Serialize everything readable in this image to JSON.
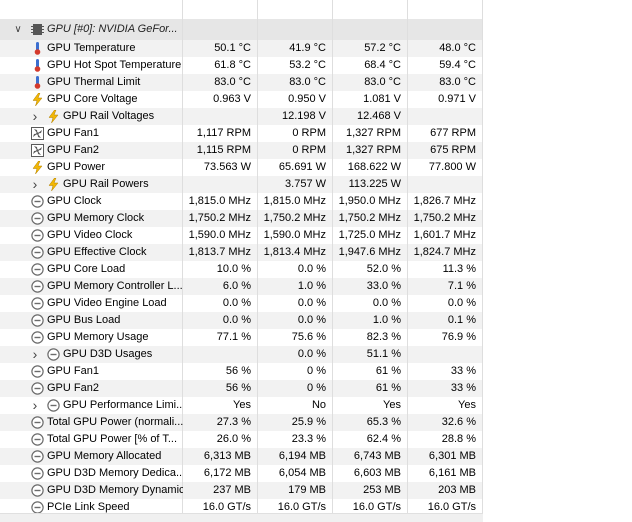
{
  "group": {
    "label": "GPU [#0]: NVIDIA GeFor...",
    "icon": "gpu-chip-icon",
    "expander": "chevron-down"
  },
  "rows": [
    {
      "label": "GPU Temperature",
      "icon": "thermometer-icon",
      "indent": 0,
      "values": [
        "50.1 °C",
        "41.9 °C",
        "57.2 °C",
        "48.0 °C"
      ]
    },
    {
      "label": "GPU Hot Spot Temperature",
      "icon": "thermometer-icon",
      "indent": 0,
      "values": [
        "61.8 °C",
        "53.2 °C",
        "68.4 °C",
        "59.4 °C"
      ]
    },
    {
      "label": "GPU Thermal Limit",
      "icon": "thermometer-icon",
      "indent": 0,
      "values": [
        "83.0 °C",
        "83.0 °C",
        "83.0 °C",
        "83.0 °C"
      ]
    },
    {
      "label": "GPU Core Voltage",
      "icon": "lightning-icon",
      "indent": 0,
      "values": [
        "0.963 V",
        "0.950 V",
        "1.081 V",
        "0.971 V"
      ]
    },
    {
      "label": "GPU Rail Voltages",
      "icon": "lightning-icon",
      "indent": 1,
      "expander": "chevron-right",
      "values": [
        "",
        "12.198 V",
        "12.468 V",
        ""
      ]
    },
    {
      "label": "GPU Fan1",
      "icon": "fan-icon",
      "indent": 0,
      "values": [
        "1,117 RPM",
        "0 RPM",
        "1,327 RPM",
        "677 RPM"
      ]
    },
    {
      "label": "GPU Fan2",
      "icon": "fan-icon",
      "indent": 0,
      "values": [
        "1,115 RPM",
        "0 RPM",
        "1,327 RPM",
        "675 RPM"
      ]
    },
    {
      "label": "GPU Power",
      "icon": "lightning-icon",
      "indent": 0,
      "values": [
        "73.563 W",
        "65.691 W",
        "168.622 W",
        "77.800 W"
      ]
    },
    {
      "label": "GPU Rail Powers",
      "icon": "lightning-icon",
      "indent": 1,
      "expander": "chevron-right",
      "values": [
        "",
        "3.757 W",
        "113.225 W",
        ""
      ]
    },
    {
      "label": "GPU Clock",
      "icon": "gauge-icon",
      "indent": 0,
      "values": [
        "1,815.0 MHz",
        "1,815.0 MHz",
        "1,950.0 MHz",
        "1,826.7 MHz"
      ]
    },
    {
      "label": "GPU Memory Clock",
      "icon": "gauge-icon",
      "indent": 0,
      "values": [
        "1,750.2 MHz",
        "1,750.2 MHz",
        "1,750.2 MHz",
        "1,750.2 MHz"
      ]
    },
    {
      "label": "GPU Video Clock",
      "icon": "gauge-icon",
      "indent": 0,
      "values": [
        "1,590.0 MHz",
        "1,590.0 MHz",
        "1,725.0 MHz",
        "1,601.7 MHz"
      ]
    },
    {
      "label": "GPU Effective Clock",
      "icon": "gauge-icon",
      "indent": 0,
      "values": [
        "1,813.7 MHz",
        "1,813.4 MHz",
        "1,947.6 MHz",
        "1,824.7 MHz"
      ]
    },
    {
      "label": "GPU Core Load",
      "icon": "gauge-icon",
      "indent": 0,
      "values": [
        "10.0 %",
        "0.0 %",
        "52.0 %",
        "11.3 %"
      ]
    },
    {
      "label": "GPU Memory Controller L...",
      "icon": "gauge-icon",
      "indent": 0,
      "values": [
        "6.0 %",
        "1.0 %",
        "33.0 %",
        "7.1 %"
      ]
    },
    {
      "label": "GPU Video Engine Load",
      "icon": "gauge-icon",
      "indent": 0,
      "values": [
        "0.0 %",
        "0.0 %",
        "0.0 %",
        "0.0 %"
      ]
    },
    {
      "label": "GPU Bus Load",
      "icon": "gauge-icon",
      "indent": 0,
      "values": [
        "0.0 %",
        "0.0 %",
        "1.0 %",
        "0.1 %"
      ]
    },
    {
      "label": "GPU Memory Usage",
      "icon": "gauge-icon",
      "indent": 0,
      "values": [
        "77.1 %",
        "75.6 %",
        "82.3 %",
        "76.9 %"
      ]
    },
    {
      "label": "GPU D3D Usages",
      "icon": "gauge-icon",
      "indent": 1,
      "expander": "chevron-right",
      "values": [
        "",
        "0.0 %",
        "51.1 %",
        ""
      ]
    },
    {
      "label": "GPU Fan1",
      "icon": "gauge-icon",
      "indent": 0,
      "values": [
        "56 %",
        "0 %",
        "61 %",
        "33 %"
      ]
    },
    {
      "label": "GPU Fan2",
      "icon": "gauge-icon",
      "indent": 0,
      "values": [
        "56 %",
        "0 %",
        "61 %",
        "33 %"
      ]
    },
    {
      "label": "GPU Performance Limi...",
      "icon": "gauge-icon",
      "indent": 1,
      "expander": "chevron-right",
      "values": [
        "Yes",
        "No",
        "Yes",
        "Yes"
      ]
    },
    {
      "label": "Total GPU Power (normali...",
      "icon": "gauge-icon",
      "indent": 0,
      "values": [
        "27.3 %",
        "25.9 %",
        "65.3 %",
        "32.6 %"
      ]
    },
    {
      "label": "Total GPU Power [% of T...",
      "icon": "gauge-icon",
      "indent": 0,
      "values": [
        "26.0 %",
        "23.3 %",
        "62.4 %",
        "28.8 %"
      ]
    },
    {
      "label": "GPU Memory Allocated",
      "icon": "gauge-icon",
      "indent": 0,
      "values": [
        "6,313 MB",
        "6,194 MB",
        "6,743 MB",
        "6,301 MB"
      ]
    },
    {
      "label": "GPU D3D Memory Dedica...",
      "icon": "gauge-icon",
      "indent": 0,
      "values": [
        "6,172 MB",
        "6,054 MB",
        "6,603 MB",
        "6,161 MB"
      ]
    },
    {
      "label": "GPU D3D Memory Dynamic",
      "icon": "gauge-icon",
      "indent": 0,
      "values": [
        "237 MB",
        "179 MB",
        "253 MB",
        "203 MB"
      ]
    },
    {
      "label": "PCIe Link Speed",
      "icon": "gauge-icon",
      "indent": 0,
      "values": [
        "16.0 GT/s",
        "16.0 GT/s",
        "16.0 GT/s",
        "16.0 GT/s"
      ]
    }
  ],
  "colors": {
    "thermo": "#3c6fd0",
    "thermo_bulb": "#d43a2c",
    "lightning": "#f2b705",
    "fan": "#5a5a5a",
    "gauge": "#6b6b6b",
    "chip": "#555555",
    "group_bg": "#e6e6e6"
  }
}
